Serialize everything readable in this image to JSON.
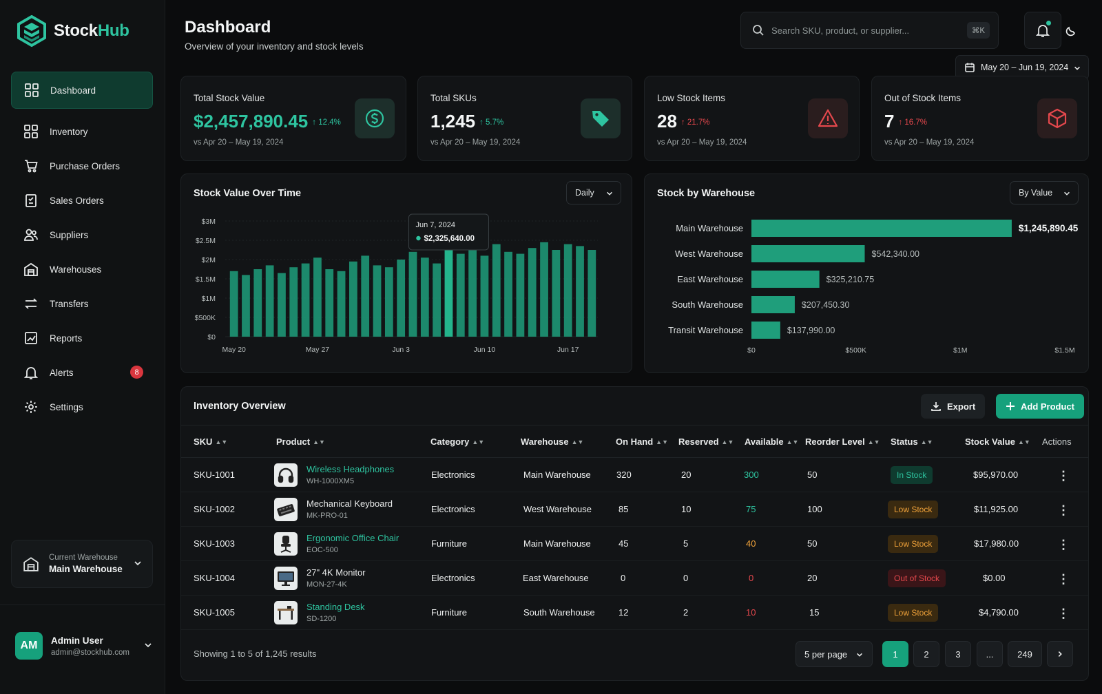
{
  "app": {
    "name_part1": "Stock",
    "name_part2": "Hub"
  },
  "sidebar": {
    "items": [
      {
        "label": "Dashboard",
        "icon": "grid-icon",
        "active": true
      },
      {
        "label": "Inventory",
        "icon": "grid-icon"
      },
      {
        "label": "Purchase Orders",
        "icon": "cart-icon"
      },
      {
        "label": "Sales Orders",
        "icon": "clipboard-icon"
      },
      {
        "label": "Suppliers",
        "icon": "users-icon"
      },
      {
        "label": "Warehouses",
        "icon": "warehouse-icon"
      },
      {
        "label": "Transfers",
        "icon": "transfer-icon"
      },
      {
        "label": "Reports",
        "icon": "chart-icon"
      },
      {
        "label": "Alerts",
        "icon": "bell-icon",
        "badge": "8"
      },
      {
        "label": "Settings",
        "icon": "gear-icon"
      }
    ],
    "warehouse_label": "Current Warehouse",
    "warehouse_value": "Main Warehouse",
    "user_initials": "AM",
    "user_name": "Admin User",
    "user_email": "admin@stockhub.com"
  },
  "header": {
    "title": "Dashboard",
    "subtitle": "Overview of your inventory and stock levels",
    "search_placeholder": "Search SKU, product, or supplier...",
    "search_shortcut": "⌘K",
    "date_range": "May 20 – Jun 19, 2024"
  },
  "kpis": [
    {
      "label": "Total Stock Value",
      "value": "$2,457,890.45",
      "delta": "↑ 12.4%",
      "compare": "vs Apr 20 – May 19, 2024",
      "icon": "dollar-icon"
    },
    {
      "label": "Total SKUs",
      "value": "1,245",
      "delta": "↑ 5.7%",
      "compare": "vs Apr 20 – May 19, 2024",
      "icon": "tag-icon"
    },
    {
      "label": "Low Stock Items",
      "value": "28",
      "delta": "↑ 21.7%",
      "compare": "vs Apr 20 – May 19, 2024",
      "icon": "warning-icon"
    },
    {
      "label": "Out of Stock Items",
      "value": "7",
      "delta": "↑ 16.7%",
      "compare": "vs Apr 20 – May 19, 2024",
      "icon": "box-icon"
    }
  ],
  "stock_over_time": {
    "title": "Stock Value Over Time",
    "period": "Daily",
    "tooltip_date": "Jun 7, 2024",
    "tooltip_value": "$2,325,640.00",
    "yticks": [
      "$3M",
      "$2.5M",
      "$2M",
      "$1.5M",
      "$1M",
      "$500K",
      "$0"
    ],
    "xticks": [
      "May 20",
      "May 27",
      "Jun 3",
      "Jun 10",
      "Jun 17"
    ]
  },
  "stock_by_warehouse": {
    "title": "Stock by Warehouse",
    "mode": "By Value",
    "xticks": [
      "$0",
      "$500K",
      "$1M",
      "$1.5M"
    ]
  },
  "chart_data": [
    {
      "type": "bar",
      "title": "Stock Value Over Time",
      "x": [
        "May 20",
        "May 21",
        "May 22",
        "May 23",
        "May 24",
        "May 25",
        "May 26",
        "May 27",
        "May 28",
        "May 29",
        "May 30",
        "May 31",
        "Jun 1",
        "Jun 2",
        "Jun 3",
        "Jun 4",
        "Jun 5",
        "Jun 6",
        "Jun 7",
        "Jun 8",
        "Jun 9",
        "Jun 10",
        "Jun 11",
        "Jun 12",
        "Jun 13",
        "Jun 14",
        "Jun 15",
        "Jun 16",
        "Jun 17",
        "Jun 18",
        "Jun 19"
      ],
      "values": [
        1700000,
        1600000,
        1750000,
        1850000,
        1650000,
        1800000,
        1900000,
        2050000,
        1750000,
        1700000,
        1950000,
        2100000,
        1850000,
        1800000,
        2000000,
        2200000,
        2050000,
        1900000,
        2325640,
        2150000,
        2250000,
        2100000,
        2400000,
        2200000,
        2150000,
        2300000,
        2450000,
        2250000,
        2400000,
        2350000,
        2250000
      ],
      "ylim": [
        0,
        3000000
      ],
      "yticks": [
        "$3M",
        "$2.5M",
        "$2M",
        "$1.5M",
        "$1M",
        "$500K",
        "$0"
      ],
      "xticks": [
        "May 20",
        "May 27",
        "Jun 3",
        "Jun 10",
        "Jun 17"
      ],
      "tooltip": {
        "date": "Jun 7, 2024",
        "value": "$2,325,640.00"
      },
      "color": "#1f9e7b"
    },
    {
      "type": "bar",
      "title": "Stock by Warehouse",
      "orientation": "horizontal",
      "categories": [
        "Main Warehouse",
        "West Warehouse",
        "East Warehouse",
        "South Warehouse",
        "Transit Warehouse"
      ],
      "values": [
        1245890.45,
        542340.0,
        325210.75,
        207450.3,
        137990.0
      ],
      "labels": [
        "$1,245,890.45",
        "$542,340.00",
        "$325,210.75",
        "$207,450.30",
        "$137,990.00"
      ],
      "xlim": [
        0,
        1500000
      ],
      "xticks": [
        "$0",
        "$500K",
        "$1M",
        "$1.5M"
      ],
      "color": "#1f9e7b"
    }
  ],
  "inventory": {
    "title": "Inventory Overview",
    "export_label": "Export",
    "add_label": "Add Product",
    "columns": [
      "SKU",
      "Product",
      "Category",
      "Warehouse",
      "On Hand",
      "Reserved",
      "Available",
      "Reorder Level",
      "Status",
      "Stock Value",
      "Actions"
    ],
    "rows": [
      {
        "sku": "SKU-1001",
        "name": "Wireless Headphones",
        "code": "WH-1000XM5",
        "category": "Electronics",
        "warehouse": "Main Warehouse",
        "on_hand": "320",
        "reserved": "20",
        "available": "300",
        "reorder": "50",
        "status": "In Stock",
        "value": "$95,970.00"
      },
      {
        "sku": "SKU-1002",
        "name": "Mechanical Keyboard",
        "code": "MK-PRO-01",
        "category": "Electronics",
        "warehouse": "West Warehouse",
        "on_hand": "85",
        "reserved": "10",
        "available": "75",
        "reorder": "100",
        "status": "Low Stock",
        "value": "$11,925.00"
      },
      {
        "sku": "SKU-1003",
        "name": "Ergonomic Office Chair",
        "code": "EOC-500",
        "category": "Furniture",
        "warehouse": "Main Warehouse",
        "on_hand": "45",
        "reserved": "5",
        "available": "40",
        "reorder": "50",
        "status": "Low Stock",
        "value": "$17,980.00"
      },
      {
        "sku": "SKU-1004",
        "name": "27\" 4K Monitor",
        "code": "MON-27-4K",
        "category": "Electronics",
        "warehouse": "East Warehouse",
        "on_hand": "0",
        "reserved": "0",
        "available": "0",
        "reorder": "20",
        "status": "Out of Stock",
        "value": "$0.00"
      },
      {
        "sku": "SKU-1005",
        "name": "Standing Desk",
        "code": "SD-1200",
        "category": "Furniture",
        "warehouse": "South Warehouse",
        "on_hand": "12",
        "reserved": "2",
        "available": "10",
        "reorder": "15",
        "status": "Low Stock",
        "value": "$4,790.00"
      }
    ],
    "footer": "Showing 1 to 5 of 1,245 results",
    "per_page": "5 per page",
    "pages": [
      "1",
      "2",
      "3",
      "...",
      "249"
    ]
  }
}
